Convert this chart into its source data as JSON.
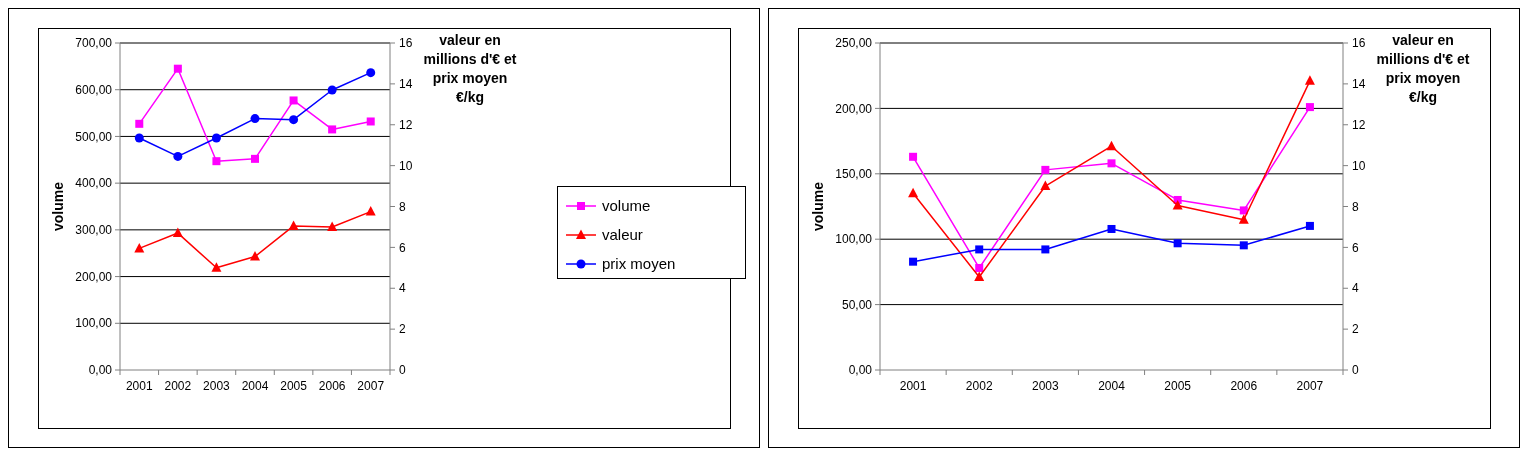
{
  "chart_data": [
    {
      "type": "line",
      "categories": [
        "2001",
        "2002",
        "2003",
        "2004",
        "2005",
        "2006",
        "2007"
      ],
      "ylabel": "volume",
      "y2label": "valeur en millions d'€ et prix moyen €/kg",
      "ylim": [
        0,
        700
      ],
      "yticks": [
        {
          "value": 0,
          "label": "0,00"
        },
        {
          "value": 100,
          "label": "100,00"
        },
        {
          "value": 200,
          "label": "200,00"
        },
        {
          "value": 300,
          "label": "300,00"
        },
        {
          "value": 400,
          "label": "400,00"
        },
        {
          "value": 500,
          "label": "500,00"
        },
        {
          "value": 600,
          "label": "600,00"
        },
        {
          "value": 700,
          "label": "700,00"
        }
      ],
      "y2lim": [
        0,
        16
      ],
      "y2ticks": [
        0,
        2,
        4,
        6,
        8,
        10,
        12,
        14,
        16
      ],
      "grid": "y",
      "legend": "right",
      "series": [
        {
          "name": "volume",
          "color": "#ff00ff",
          "marker": "square",
          "values": [
            527,
            645,
            447,
            452,
            577,
            515,
            532
          ]
        },
        {
          "name": "valeur",
          "color": "#ff0000",
          "marker": "triangle",
          "axis": "y2",
          "values": [
            5.95,
            6.7,
            5.0,
            5.55,
            7.05,
            7.0,
            7.75
          ]
        },
        {
          "name": "prix moyen",
          "color": "#0000ff",
          "marker": "circle",
          "axis": "y2",
          "values": [
            11.35,
            10.45,
            11.35,
            12.3,
            12.25,
            13.7,
            14.55
          ]
        }
      ]
    },
    {
      "type": "line",
      "categories": [
        "2001",
        "2002",
        "2003",
        "2004",
        "2005",
        "2006",
        "2007"
      ],
      "ylabel": "volume",
      "y2label": "valeur en millions d'€ et prix moyen €/kg",
      "ylim": [
        0,
        250
      ],
      "yticks": [
        {
          "value": 0,
          "label": "0,00"
        },
        {
          "value": 50,
          "label": "50,00"
        },
        {
          "value": 100,
          "label": "100,00"
        },
        {
          "value": 150,
          "label": "150,00"
        },
        {
          "value": 200,
          "label": "200,00"
        },
        {
          "value": 250,
          "label": "250,00"
        }
      ],
      "y2lim": [
        0,
        16
      ],
      "y2ticks": [
        0,
        2,
        4,
        6,
        8,
        10,
        12,
        14,
        16
      ],
      "grid": "y",
      "series": [
        {
          "color": "#ff00ff",
          "marker": "square",
          "values": [
            163,
            78,
            153,
            158,
            130,
            122,
            201
          ]
        },
        {
          "color": "#ff0000",
          "marker": "triangle",
          "axis": "y2",
          "values": [
            8.65,
            4.55,
            9.0,
            10.95,
            8.05,
            7.35,
            14.15
          ]
        },
        {
          "color": "#0000ff",
          "marker": "square",
          "axis": "y2",
          "values": [
            5.3,
            5.9,
            5.9,
            6.9,
            6.2,
            6.1,
            7.05
          ]
        }
      ]
    }
  ]
}
